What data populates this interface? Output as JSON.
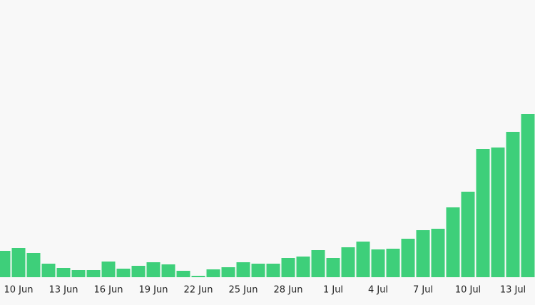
{
  "chart_data": {
    "type": "bar",
    "categories": [
      null,
      "10 Jun",
      null,
      null,
      "13 Jun",
      null,
      null,
      "16 Jun",
      null,
      null,
      "19 Jun",
      null,
      null,
      "22 Jun",
      null,
      null,
      "25 Jun",
      null,
      null,
      "28 Jun",
      null,
      null,
      "1 Jul",
      null,
      null,
      "4 Jul",
      null,
      null,
      "7 Jul",
      null,
      null,
      "10 Jul",
      null,
      null,
      "13 Jul",
      null
    ],
    "values": [
      37,
      41,
      34,
      19,
      13,
      10,
      10,
      22,
      12,
      16,
      21,
      18,
      9,
      2,
      11,
      14,
      21,
      19,
      19,
      27,
      29,
      38,
      27,
      42,
      50,
      39,
      40,
      54,
      66,
      68,
      98,
      120,
      180,
      182,
      204,
      229
    ],
    "color": "#3ecf7a",
    "ylim": [
      0,
      389
    ]
  }
}
